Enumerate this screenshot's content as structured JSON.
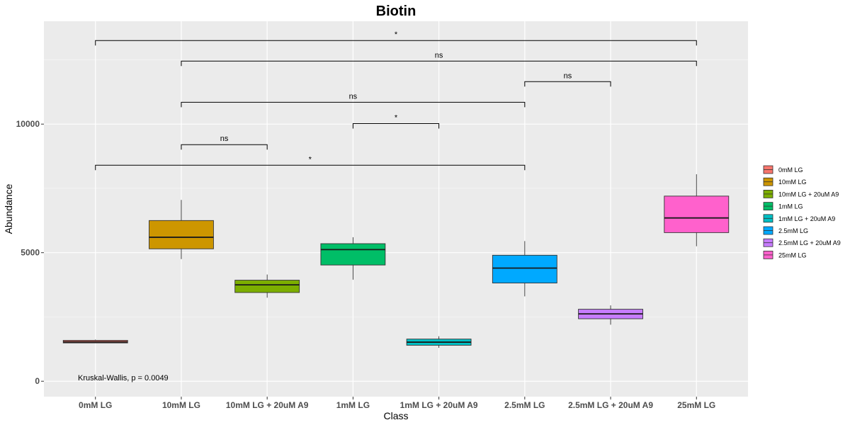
{
  "chart_data": {
    "type": "box",
    "title": "Biotin",
    "xlabel": "Class",
    "ylabel": "Abundance",
    "ylim": [
      -600,
      14000
    ],
    "yticks": [
      0,
      5000,
      10000
    ],
    "ytick_labels": [
      "0",
      "5000",
      "10000"
    ],
    "grid": true,
    "legend_position": "right",
    "categories": [
      "0mM LG",
      "10mM LG",
      "10mM LG + 20uM A9",
      "1mM LG",
      "1mM LG + 20uM A9",
      "2.5mM LG",
      "2.5mM LG + 20uM A9",
      "25mM LG"
    ],
    "legend": [
      "0mM LG",
      "10mM LG",
      "10mM LG + 20uM A9",
      "1mM LG",
      "1mM LG + 20uM A9",
      "2.5mM LG",
      "2.5mM LG + 20uM A9",
      "25mM LG"
    ],
    "colors": [
      "#F8766D",
      "#CD9600",
      "#7CAE00",
      "#00BE67",
      "#00BFC4",
      "#00A9FF",
      "#C77CFF",
      "#FF61CC"
    ],
    "boxes": [
      {
        "category": "0mM LG",
        "min": 1480,
        "q1": 1490,
        "median": 1530,
        "q3": 1590,
        "max": 1620
      },
      {
        "category": "10mM LG",
        "min": 4750,
        "q1": 5150,
        "median": 5600,
        "q3": 6250,
        "max": 7050
      },
      {
        "category": "10mM LG + 20uM A9",
        "min": 3250,
        "q1": 3450,
        "median": 3750,
        "q3": 3930,
        "max": 4150
      },
      {
        "category": "1mM LG",
        "min": 3950,
        "q1": 4520,
        "median": 5120,
        "q3": 5350,
        "max": 5600
      },
      {
        "category": "1mM LG + 20uM A9",
        "min": 1300,
        "q1": 1400,
        "median": 1520,
        "q3": 1640,
        "max": 1750
      },
      {
        "category": "2.5mM LG",
        "min": 3300,
        "q1": 3820,
        "median": 4400,
        "q3": 4900,
        "max": 5450
      },
      {
        "category": "2.5mM LG + 20uM A9",
        "min": 2200,
        "q1": 2430,
        "median": 2620,
        "q3": 2800,
        "max": 2950
      },
      {
        "category": "25mM LG",
        "min": 5250,
        "q1": 5780,
        "median": 6350,
        "q3": 7200,
        "max": 8050
      }
    ],
    "comparisons": [
      {
        "from": "0mM LG",
        "to": "25mM LG",
        "y": 13250,
        "label": "*"
      },
      {
        "from": "10mM LG",
        "to": "25mM LG",
        "y": 12450,
        "label": "ns"
      },
      {
        "from": "2.5mM LG",
        "to": "2.5mM LG + 20uM A9",
        "y": 11650,
        "label": "ns"
      },
      {
        "from": "10mM LG",
        "to": "2.5mM LG",
        "y": 10850,
        "label": "ns"
      },
      {
        "from": "1mM LG",
        "to": "1mM LG + 20uM A9",
        "y": 10020,
        "label": "*"
      },
      {
        "from": "10mM LG",
        "to": "10mM LG + 20uM A9",
        "y": 9200,
        "label": "ns"
      },
      {
        "from": "0mM LG",
        "to": "2.5mM LG",
        "y": 8400,
        "label": "*"
      }
    ],
    "annotation": "Kruskal-Wallis, p = 0.0049"
  }
}
